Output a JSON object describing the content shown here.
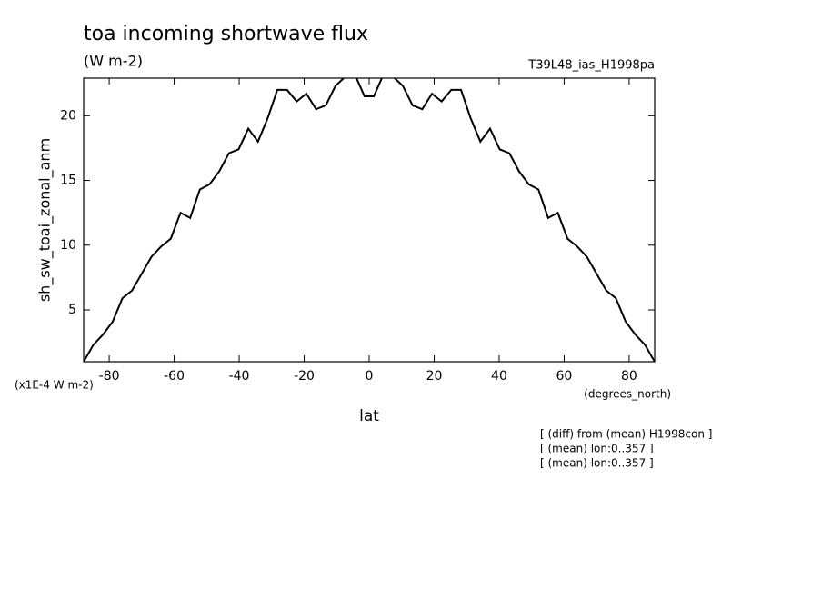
{
  "chart_data": {
    "type": "line",
    "title": "toa incoming shortwave flux",
    "subtitle": "(W m-2)",
    "run_label": "T39L48_ias_H1998pa",
    "y_label": "sh_sw_toai_zonal_anm",
    "y_units": "(x1E-4 W m-2)",
    "x_label": "lat",
    "x_units": "(degrees_north)",
    "notes": [
      "[ (diff) from (mean) H1998con ]",
      "[ (mean) lon:0..357 ]",
      "[ (mean) lon:0..357 ]"
    ],
    "x": [
      -87.86,
      -84.88,
      -81.9,
      -78.92,
      -75.94,
      -72.96,
      -69.98,
      -67.0,
      -64.02,
      -61.04,
      -58.06,
      -55.08,
      -52.1,
      -49.12,
      -46.14,
      -43.16,
      -40.18,
      -37.2,
      -34.22,
      -31.24,
      -28.26,
      -25.28,
      -22.3,
      -19.32,
      -16.34,
      -13.36,
      -10.38,
      -7.4,
      -4.42,
      -1.44,
      1.44,
      4.42,
      7.4,
      10.38,
      13.36,
      16.34,
      19.32,
      22.3,
      25.28,
      28.26,
      31.24,
      34.22,
      37.2,
      40.18,
      43.16,
      46.14,
      49.12,
      52.1,
      55.08,
      58.06,
      61.04,
      64.02,
      67.0,
      69.98,
      72.96,
      75.94,
      78.92,
      81.9,
      84.88,
      87.86
    ],
    "series": [
      {
        "name": "sh_sw_toai_zonal_anm",
        "color": "#000000",
        "values": [
          1.0,
          2.3,
          3.1,
          4.1,
          5.9,
          6.5,
          7.8,
          9.1,
          9.9,
          10.5,
          12.5,
          12.1,
          14.3,
          14.7,
          15.7,
          17.1,
          17.4,
          19.0,
          18.0,
          19.8,
          22.0,
          22.0,
          21.1,
          21.7,
          20.5,
          20.8,
          22.3,
          23.0,
          23.2,
          21.5,
          21.5,
          23.2,
          23.0,
          22.3,
          20.8,
          20.5,
          21.7,
          21.1,
          22.0,
          22.0,
          19.8,
          18.0,
          19.0,
          17.4,
          17.1,
          15.7,
          14.7,
          14.3,
          12.1,
          12.5,
          10.5,
          9.9,
          9.1,
          7.8,
          6.5,
          5.9,
          4.1,
          3.1,
          2.3,
          1.0
        ]
      }
    ],
    "xlim": [
      -87.86,
      87.86
    ],
    "ylim": [
      1.0,
      22.9
    ],
    "xticks": [
      -80,
      -60,
      -40,
      -20,
      0,
      20,
      40,
      60,
      80
    ],
    "yticks": [
      5,
      10,
      15,
      20
    ]
  }
}
